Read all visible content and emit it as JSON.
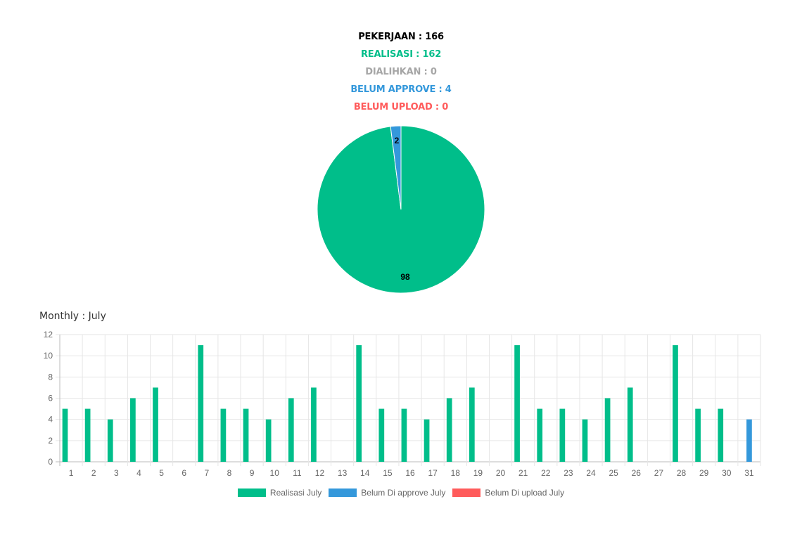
{
  "summary": {
    "pekerjaan": "PEKERJAAN : 166",
    "realisasi": "REALISASI : 162",
    "dialihkan": "DIALIHKAN : 0",
    "belum_approve": "BELUM APPROVE : 4",
    "belum_upload": "BELUM UPLOAD : 0"
  },
  "colors": {
    "realisasi": "#00be8a",
    "belum_approve": "#3498db",
    "belum_upload": "#ff5b5b",
    "dialihkan": "#a6a6a6",
    "pekerjaan": "#000000"
  },
  "monthly_title": "Monthly : July",
  "chart_data": [
    {
      "type": "pie",
      "slices": [
        {
          "value": 98,
          "label": "98",
          "color": "#00be8a"
        },
        {
          "value": 2,
          "label": "2",
          "color": "#3498db"
        }
      ]
    },
    {
      "type": "bar",
      "categories": [
        "1",
        "2",
        "3",
        "4",
        "5",
        "6",
        "7",
        "8",
        "9",
        "10",
        "11",
        "12",
        "13",
        "14",
        "15",
        "16",
        "17",
        "18",
        "19",
        "20",
        "21",
        "22",
        "23",
        "24",
        "25",
        "26",
        "27",
        "28",
        "29",
        "30",
        "31"
      ],
      "series": [
        {
          "name": "Realisasi July",
          "color": "#00be8a",
          "values": [
            5,
            5,
            4,
            6,
            7,
            0,
            11,
            5,
            5,
            4,
            6,
            7,
            0,
            11,
            5,
            5,
            4,
            6,
            7,
            0,
            11,
            5,
            5,
            4,
            6,
            7,
            0,
            11,
            5,
            5,
            0
          ]
        },
        {
          "name": "Belum Di approve July",
          "color": "#3498db",
          "values": [
            0,
            0,
            0,
            0,
            0,
            0,
            0,
            0,
            0,
            0,
            0,
            0,
            0,
            0,
            0,
            0,
            0,
            0,
            0,
            0,
            0,
            0,
            0,
            0,
            0,
            0,
            0,
            0,
            0,
            0,
            4
          ]
        },
        {
          "name": "Belum Di upload July",
          "color": "#ff5b5b",
          "values": [
            0,
            0,
            0,
            0,
            0,
            0,
            0,
            0,
            0,
            0,
            0,
            0,
            0,
            0,
            0,
            0,
            0,
            0,
            0,
            0,
            0,
            0,
            0,
            0,
            0,
            0,
            0,
            0,
            0,
            0,
            0
          ]
        }
      ],
      "ylim": [
        0,
        12
      ],
      "yticks": [
        "0",
        "2",
        "4",
        "6",
        "8",
        "10",
        "12"
      ],
      "grid": true,
      "legend": "bottom"
    }
  ]
}
